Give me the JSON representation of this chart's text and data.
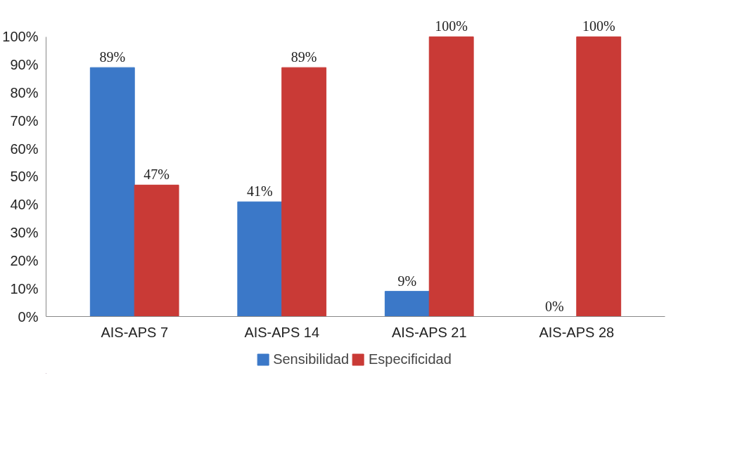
{
  "chart_data": {
    "type": "bar",
    "categories": [
      "AIS-APS 7",
      "AIS-APS 14",
      "AIS-APS 21",
      "AIS-APS 28"
    ],
    "series": [
      {
        "name": "Sensibilidad",
        "color": "#3b78c8",
        "values": [
          89,
          41,
          9,
          0
        ],
        "value_labels": [
          "89%",
          "41%",
          "9%",
          "0%"
        ]
      },
      {
        "name": "Especificidad",
        "color": "#c93a36",
        "values": [
          47,
          89,
          100,
          100
        ],
        "value_labels": [
          "47%",
          "89%",
          "100%",
          "100%"
        ]
      }
    ],
    "ylim": [
      0,
      100
    ],
    "yticks": [
      {
        "value": 0,
        "label": "0%"
      },
      {
        "value": 10,
        "label": "10%"
      },
      {
        "value": 20,
        "label": "20%"
      },
      {
        "value": 30,
        "label": "30%"
      },
      {
        "value": 40,
        "label": "40%"
      },
      {
        "value": 50,
        "label": "50%"
      },
      {
        "value": 60,
        "label": "60%"
      },
      {
        "value": 70,
        "label": "70%"
      },
      {
        "value": 80,
        "label": "80%"
      },
      {
        "value": 90,
        "label": "90%"
      },
      {
        "value": 100,
        "label": "100%"
      }
    ],
    "grid": false,
    "legend": "bottom"
  }
}
